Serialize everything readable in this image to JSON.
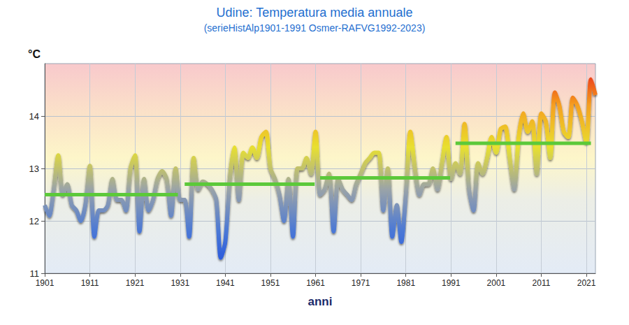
{
  "chart_data": {
    "type": "line",
    "title": "Udine: Temperatura media annuale",
    "subtitle": "(serieHistAlp1901-1991 Osmer-RAFVG1992-2023)",
    "x_label": "anni",
    "y_label": "°C",
    "x": [
      1901,
      1902,
      1903,
      1904,
      1905,
      1906,
      1907,
      1908,
      1909,
      1910,
      1911,
      1912,
      1913,
      1914,
      1915,
      1916,
      1917,
      1918,
      1919,
      1920,
      1921,
      1922,
      1923,
      1924,
      1925,
      1926,
      1927,
      1928,
      1929,
      1930,
      1931,
      1932,
      1933,
      1934,
      1935,
      1936,
      1937,
      1938,
      1939,
      1940,
      1941,
      1942,
      1943,
      1944,
      1945,
      1946,
      1947,
      1948,
      1949,
      1950,
      1951,
      1952,
      1953,
      1954,
      1955,
      1956,
      1957,
      1958,
      1959,
      1960,
      1961,
      1962,
      1963,
      1964,
      1965,
      1966,
      1967,
      1968,
      1969,
      1970,
      1971,
      1972,
      1973,
      1974,
      1975,
      1976,
      1977,
      1978,
      1979,
      1980,
      1981,
      1982,
      1983,
      1984,
      1985,
      1986,
      1987,
      1988,
      1989,
      1990,
      1991,
      1992,
      1993,
      1994,
      1995,
      1996,
      1997,
      1998,
      1999,
      2000,
      2001,
      2002,
      2003,
      2004,
      2005,
      2006,
      2007,
      2008,
      2009,
      2010,
      2011,
      2012,
      2013,
      2014,
      2015,
      2016,
      2017,
      2018,
      2019,
      2020,
      2021,
      2022,
      2023
    ],
    "series": [
      {
        "type": "line",
        "values": [
          12.3,
          12.1,
          12.6,
          13.25,
          12.5,
          12.7,
          12.3,
          12.2,
          12.0,
          12.3,
          13.05,
          11.7,
          12.2,
          12.2,
          12.3,
          12.8,
          12.4,
          12.4,
          12.2,
          13.0,
          13.25,
          11.8,
          12.8,
          12.2,
          12.4,
          12.8,
          12.95,
          12.8,
          12.1,
          13.0,
          12.4,
          12.4,
          11.7,
          13.2,
          12.6,
          12.75,
          12.7,
          12.6,
          12.4,
          11.3,
          11.6,
          12.8,
          13.4,
          12.4,
          13.3,
          13.2,
          13.4,
          13.2,
          13.6,
          13.7,
          13.0,
          12.8,
          12.5,
          12.0,
          12.8,
          11.7,
          13.0,
          13.0,
          13.2,
          12.9,
          13.7,
          12.5,
          12.6,
          12.9,
          11.8,
          12.8,
          12.6,
          12.5,
          12.4,
          12.7,
          12.9,
          13.1,
          13.2,
          13.3,
          13.3,
          12.2,
          13.0,
          11.7,
          12.3,
          11.6,
          12.5,
          13.7,
          13.0,
          12.5,
          12.7,
          12.7,
          13.0,
          12.6,
          13.1,
          13.6,
          12.8,
          13.1,
          12.9,
          13.85,
          12.6,
          12.2,
          13.1,
          12.9,
          13.2,
          13.6,
          13.3,
          13.75,
          13.8,
          13.2,
          12.6,
          13.6,
          14.05,
          13.7,
          13.9,
          12.9,
          14.05,
          13.9,
          13.2,
          14.45,
          14.2,
          13.7,
          13.6,
          14.35,
          14.2,
          13.9,
          13.5,
          14.7,
          14.4
        ]
      },
      {
        "type": "segments",
        "color": "#5cc93a",
        "x": [
          [
            1901,
            1930.5
          ],
          [
            1932,
            1960.8
          ],
          [
            1962,
            1990.8
          ],
          [
            1992,
            2022
          ]
        ],
        "values": [
          12.5,
          12.7,
          12.82,
          13.48
        ]
      }
    ],
    "xlim": [
      1901,
      2023
    ],
    "xticks": [
      1901,
      1911,
      1921,
      1931,
      1941,
      1951,
      1961,
      1971,
      1981,
      1991,
      2001,
      2011,
      2021
    ],
    "ylim": [
      11,
      15
    ],
    "yticks": [
      11,
      12,
      13,
      14
    ],
    "grid": true
  }
}
